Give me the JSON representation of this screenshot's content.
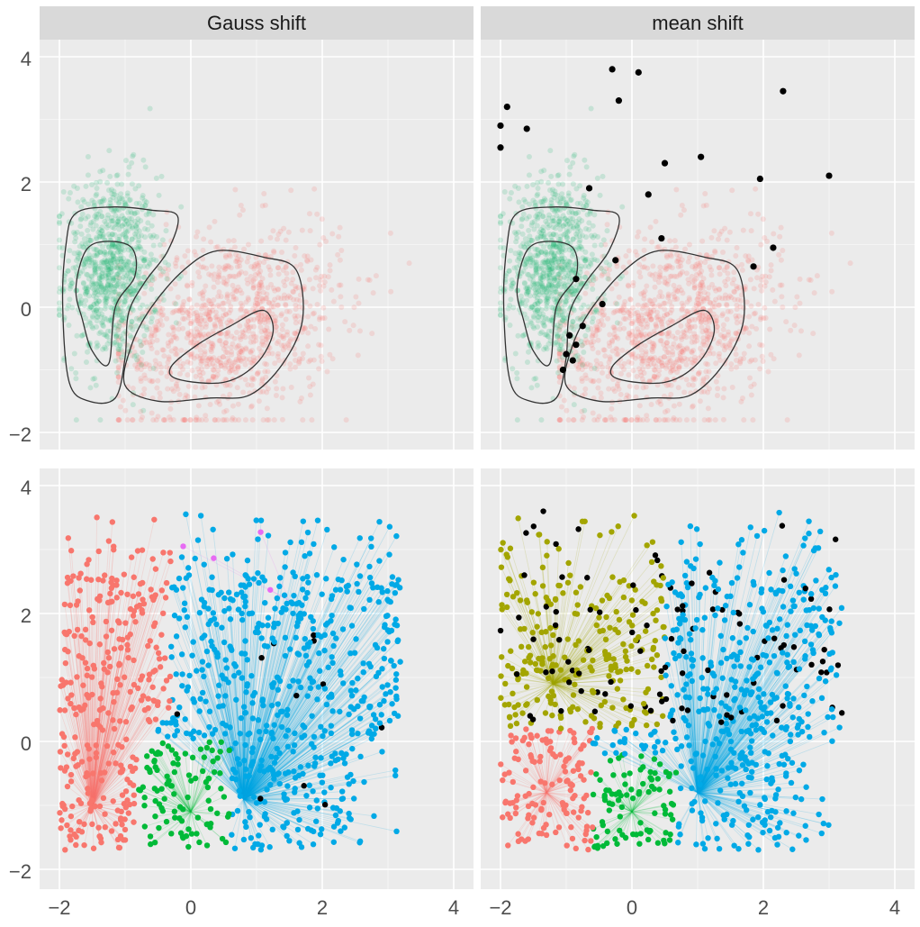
{
  "colors": {
    "panel_bg": "#ebebeb",
    "strip_bg": "#d9d9d9",
    "grid": "#ffffff",
    "text": "#1a1a1a",
    "tick_text": "#4d4d4d",
    "contour": "#333333",
    "noise": "#000000",
    "cluster_red": "#f8766d",
    "cluster_green": "#1fb573",
    "cluster_blue": "#00a9e6",
    "cluster_olive": "#a3a500",
    "cluster_magenta": "#e76bf3",
    "cluster_teal_green": "#00ba38"
  },
  "chart_data": {
    "type": "scatter",
    "facets": {
      "columns": [
        "Gauss shift",
        "mean shift"
      ],
      "rows": 2
    },
    "x_ticks": [
      -2,
      0,
      2,
      4
    ],
    "y_ticks": [
      4,
      2,
      0,
      -2
    ],
    "x_tick_labels": [
      "−2",
      "0",
      "2",
      "4"
    ],
    "y_tick_labels": [
      "4",
      "2",
      "0",
      "−2"
    ],
    "xlim": [
      -2.3,
      4.3
    ],
    "ylim": [
      -2.3,
      4.3
    ],
    "clusters": [
      {
        "name": "green",
        "center": [
          -1.2,
          0.6
        ],
        "sd": [
          0.35,
          0.75
        ]
      },
      {
        "name": "red",
        "center": [
          0.6,
          -0.3
        ],
        "sd": [
          0.85,
          0.75
        ]
      }
    ],
    "noise_points_mean_shift_top": [
      [
        -1.9,
        3.2
      ],
      [
        -2.0,
        2.9
      ],
      [
        -2.0,
        2.55
      ],
      [
        -1.6,
        2.85
      ],
      [
        -0.3,
        3.8
      ],
      [
        0.1,
        3.75
      ],
      [
        -0.2,
        3.3
      ],
      [
        2.3,
        3.45
      ],
      [
        0.5,
        2.3
      ],
      [
        1.05,
        2.4
      ],
      [
        1.95,
        2.05
      ],
      [
        3.0,
        2.1
      ],
      [
        -0.65,
        1.9
      ],
      [
        0.25,
        1.8
      ],
      [
        0.45,
        1.1
      ],
      [
        2.15,
        0.95
      ],
      [
        1.85,
        0.65
      ],
      [
        -0.25,
        0.75
      ],
      [
        -0.85,
        0.45
      ],
      [
        -0.45,
        0.05
      ],
      [
        -0.75,
        -0.3
      ],
      [
        -0.95,
        -0.45
      ],
      [
        -0.85,
        -0.6
      ],
      [
        -1.0,
        -0.75
      ],
      [
        -0.9,
        -0.85
      ],
      [
        -1.05,
        -1.0
      ]
    ]
  }
}
